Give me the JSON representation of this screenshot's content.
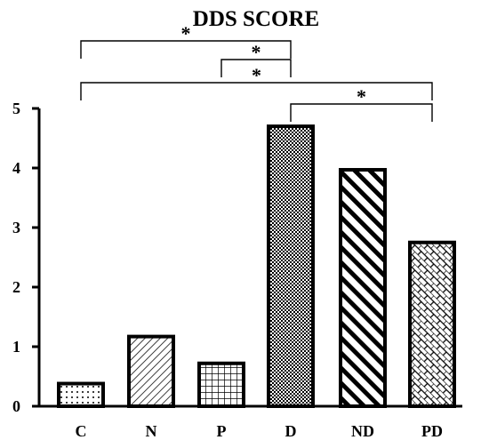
{
  "chart_data": {
    "type": "bar",
    "title": "DDS SCORE",
    "xlabel": "",
    "ylabel": "",
    "categories": [
      "C",
      "N",
      "P",
      "D",
      "ND",
      "PD"
    ],
    "values": [
      0.38,
      1.17,
      0.72,
      4.7,
      3.97,
      2.75
    ],
    "patterns": [
      "dots",
      "diagonal-thin",
      "grid",
      "checker",
      "diagonal-thick",
      "brick"
    ],
    "ylim": [
      0,
      5
    ],
    "yticks": [
      0,
      1,
      2,
      3,
      4,
      5
    ],
    "significance": [
      {
        "from": "C",
        "to": "D",
        "label": "*"
      },
      {
        "from": "P",
        "to": "D",
        "label": "*"
      },
      {
        "from": "C",
        "to": "PD",
        "label": "*"
      },
      {
        "from": "D",
        "to": "PD",
        "label": "*"
      }
    ]
  }
}
